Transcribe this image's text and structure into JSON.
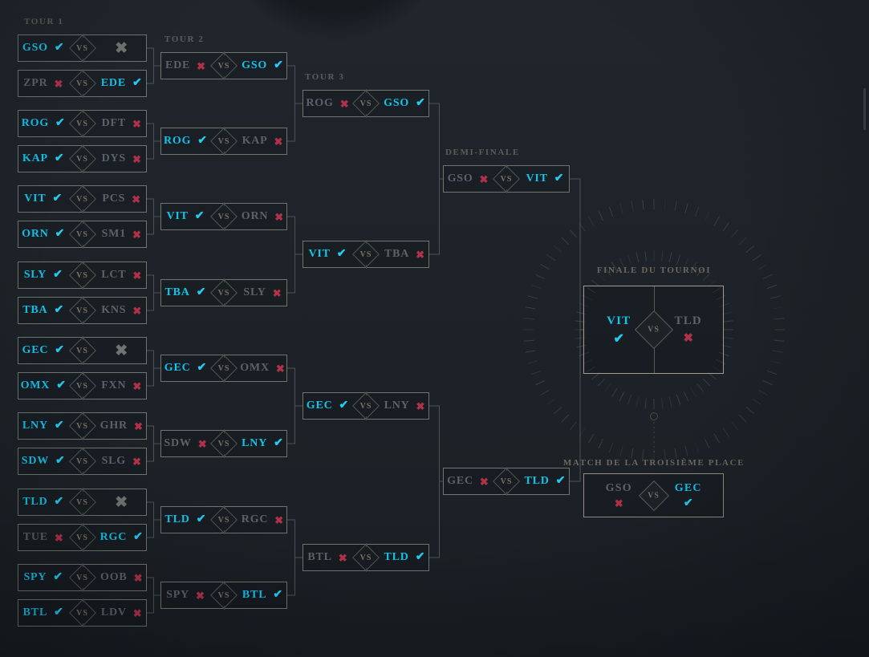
{
  "labels": {
    "round1": "TOUR 1",
    "round2": "TOUR 2",
    "round3": "TOUR 3",
    "semifinal": "DEMI-FINALE",
    "final": "FINALE DU TOURNOI",
    "third_place": "MATCH DE LA TROISIÈME PLACE",
    "vs": "VS"
  },
  "icons": {
    "win": "✔",
    "lose": "✖",
    "bye": "✖"
  },
  "colors": {
    "winner_text": "#12c3ea",
    "winner_mark": "#23cdf4",
    "loser_text": "#5c6367",
    "loser_mark": "#b13148",
    "bye_mark": "#6f7570",
    "box_border": "#71756e",
    "final_border": "#a49d8e",
    "background": "#1d2328"
  },
  "rounds": [
    {
      "label": "TOUR 1",
      "matches": [
        {
          "left": {
            "name": "GSO",
            "result": "win"
          },
          "right": {
            "name": "",
            "result": "bye"
          }
        },
        {
          "left": {
            "name": "ZPR",
            "result": "lose"
          },
          "right": {
            "name": "EDE",
            "result": "win"
          }
        },
        {
          "left": {
            "name": "ROG",
            "result": "win"
          },
          "right": {
            "name": "DFT",
            "result": "lose"
          }
        },
        {
          "left": {
            "name": "KAP",
            "result": "win"
          },
          "right": {
            "name": "DYS",
            "result": "lose"
          }
        },
        {
          "left": {
            "name": "VIT",
            "result": "win"
          },
          "right": {
            "name": "PCS",
            "result": "lose"
          }
        },
        {
          "left": {
            "name": "ORN",
            "result": "win"
          },
          "right": {
            "name": "SM1",
            "result": "lose"
          }
        },
        {
          "left": {
            "name": "SLY",
            "result": "win"
          },
          "right": {
            "name": "LCT",
            "result": "lose"
          }
        },
        {
          "left": {
            "name": "TBA",
            "result": "win"
          },
          "right": {
            "name": "KNS",
            "result": "lose"
          }
        },
        {
          "left": {
            "name": "GEC",
            "result": "win"
          },
          "right": {
            "name": "",
            "result": "bye"
          }
        },
        {
          "left": {
            "name": "OMX",
            "result": "win"
          },
          "right": {
            "name": "FXN",
            "result": "lose"
          }
        },
        {
          "left": {
            "name": "LNY",
            "result": "win"
          },
          "right": {
            "name": "GHR",
            "result": "lose"
          }
        },
        {
          "left": {
            "name": "SDW",
            "result": "win"
          },
          "right": {
            "name": "SLG",
            "result": "lose"
          }
        },
        {
          "left": {
            "name": "TLD",
            "result": "win"
          },
          "right": {
            "name": "",
            "result": "bye"
          }
        },
        {
          "left": {
            "name": "TUE",
            "result": "lose"
          },
          "right": {
            "name": "RGC",
            "result": "win"
          }
        },
        {
          "left": {
            "name": "SPY",
            "result": "win"
          },
          "right": {
            "name": "OOB",
            "result": "lose"
          }
        },
        {
          "left": {
            "name": "BTL",
            "result": "win"
          },
          "right": {
            "name": "LDV",
            "result": "lose"
          }
        }
      ]
    },
    {
      "label": "TOUR 2",
      "matches": [
        {
          "left": {
            "name": "EDE",
            "result": "lose"
          },
          "right": {
            "name": "GSO",
            "result": "win"
          }
        },
        {
          "left": {
            "name": "ROG",
            "result": "win"
          },
          "right": {
            "name": "KAP",
            "result": "lose"
          }
        },
        {
          "left": {
            "name": "VIT",
            "result": "win"
          },
          "right": {
            "name": "ORN",
            "result": "lose"
          }
        },
        {
          "left": {
            "name": "TBA",
            "result": "win"
          },
          "right": {
            "name": "SLY",
            "result": "lose"
          }
        },
        {
          "left": {
            "name": "GEC",
            "result": "win"
          },
          "right": {
            "name": "OMX",
            "result": "lose"
          }
        },
        {
          "left": {
            "name": "SDW",
            "result": "lose"
          },
          "right": {
            "name": "LNY",
            "result": "win"
          }
        },
        {
          "left": {
            "name": "TLD",
            "result": "win"
          },
          "right": {
            "name": "RGC",
            "result": "lose"
          }
        },
        {
          "left": {
            "name": "SPY",
            "result": "lose"
          },
          "right": {
            "name": "BTL",
            "result": "win"
          }
        }
      ]
    },
    {
      "label": "TOUR 3",
      "matches": [
        {
          "left": {
            "name": "ROG",
            "result": "lose"
          },
          "right": {
            "name": "GSO",
            "result": "win"
          }
        },
        {
          "left": {
            "name": "VIT",
            "result": "win"
          },
          "right": {
            "name": "TBA",
            "result": "lose"
          }
        },
        {
          "left": {
            "name": "GEC",
            "result": "win"
          },
          "right": {
            "name": "LNY",
            "result": "lose"
          }
        },
        {
          "left": {
            "name": "BTL",
            "result": "lose"
          },
          "right": {
            "name": "TLD",
            "result": "win"
          }
        }
      ]
    },
    {
      "label": "DEMI-FINALE",
      "matches": [
        {
          "left": {
            "name": "GSO",
            "result": "lose"
          },
          "right": {
            "name": "VIT",
            "result": "win"
          }
        },
        {
          "left": {
            "name": "GEC",
            "result": "lose"
          },
          "right": {
            "name": "TLD",
            "result": "win"
          }
        }
      ]
    }
  ],
  "final_match": {
    "left": {
      "name": "VIT",
      "result": "win"
    },
    "right": {
      "name": "TLD",
      "result": "lose"
    }
  },
  "third_place_match": {
    "left": {
      "name": "GSO",
      "result": "lose"
    },
    "right": {
      "name": "GEC",
      "result": "win"
    }
  }
}
